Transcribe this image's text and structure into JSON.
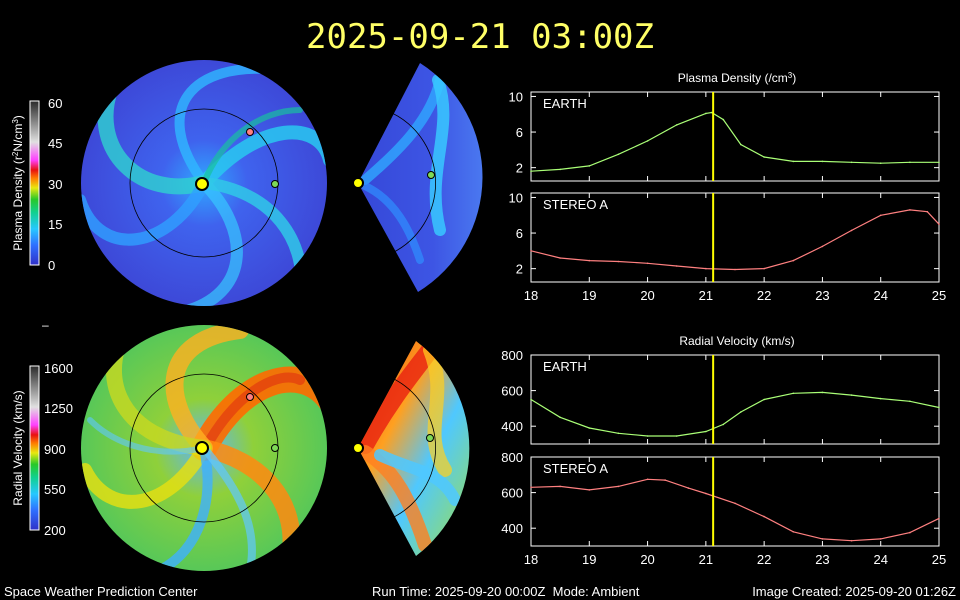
{
  "header": {
    "timestamp": "2025-09-21 03:00Z"
  },
  "colorbars": {
    "density": {
      "label": "Plasma Density (r",
      "label_sup": "2",
      "label_tail": "N/cm",
      "label_sup2": "3",
      "label_end": ")",
      "ticks": [
        "60",
        "45",
        "30",
        "15",
        "0"
      ]
    },
    "velocity": {
      "label": "Radial Velocity (km/s)",
      "ticks": [
        "1600",
        "1250",
        "900",
        "550",
        "200"
      ]
    }
  },
  "separator_mark": "–",
  "colors": {
    "earth_marker": "#7ed957",
    "stereo_marker": "#ff7f7f",
    "sun": "#ffff00",
    "now_line": "#ffff00",
    "earth_line": "#aaff77",
    "stereo_line": "#ff8080"
  },
  "chart_data": [
    {
      "type": "line",
      "title": "Plasma Density (/cm",
      "title_sup": "3",
      "title_end": ")",
      "panels": [
        {
          "name": "EARTH",
          "ylim": [
            0.5,
            10.5
          ],
          "yticks": [
            "10",
            "6",
            "2"
          ],
          "ytick_values": [
            10,
            6,
            2
          ],
          "x": [
            18,
            18.5,
            19,
            19.5,
            20,
            20.5,
            21,
            21.1,
            21.3,
            21.6,
            22,
            22.5,
            23,
            23.5,
            24,
            24.5,
            25
          ],
          "values": [
            1.6,
            1.8,
            2.2,
            3.5,
            5.0,
            6.8,
            8.1,
            8.2,
            7.4,
            4.6,
            3.2,
            2.7,
            2.7,
            2.6,
            2.5,
            2.6,
            2.6
          ]
        },
        {
          "name": "STEREO A",
          "ylim": [
            0.5,
            10.5
          ],
          "yticks": [
            "10",
            "6",
            "2"
          ],
          "ytick_values": [
            10,
            6,
            2
          ],
          "x": [
            18,
            18.5,
            19,
            19.5,
            20,
            20.5,
            21,
            21.5,
            22,
            22.5,
            23,
            23.5,
            24,
            24.5,
            24.8,
            25
          ],
          "values": [
            4.0,
            3.2,
            2.9,
            2.8,
            2.6,
            2.3,
            2.0,
            1.9,
            2.0,
            2.9,
            4.5,
            6.3,
            8.0,
            8.6,
            8.4,
            7.0
          ]
        }
      ],
      "xticks": [
        "18",
        "19",
        "20",
        "21",
        "22",
        "23",
        "24",
        "25"
      ],
      "xlim": [
        18,
        25
      ],
      "now_x": 21.125
    },
    {
      "type": "line",
      "title": "Radial Velocity (km/s)",
      "panels": [
        {
          "name": "EARTH",
          "ylim": [
            300,
            800
          ],
          "yticks": [
            "800",
            "600",
            "400"
          ],
          "ytick_values": [
            800,
            600,
            400
          ],
          "x": [
            18,
            18.5,
            19,
            19.5,
            20,
            20.5,
            21,
            21.3,
            21.6,
            22,
            22.5,
            23,
            23.5,
            24,
            24.5,
            25
          ],
          "values": [
            550,
            450,
            390,
            360,
            345,
            345,
            370,
            410,
            480,
            550,
            585,
            590,
            575,
            555,
            540,
            505
          ]
        },
        {
          "name": "STEREO A",
          "ylim": [
            300,
            800
          ],
          "yticks": [
            "800",
            "600",
            "400"
          ],
          "ytick_values": [
            800,
            600,
            400
          ],
          "x": [
            18,
            18.5,
            19,
            19.5,
            20,
            20.3,
            20.7,
            21,
            21.5,
            22,
            22.5,
            23,
            23.5,
            24,
            24.5,
            25
          ],
          "values": [
            630,
            635,
            615,
            635,
            675,
            670,
            625,
            595,
            540,
            465,
            380,
            340,
            330,
            340,
            375,
            455
          ]
        }
      ],
      "xticks": [
        "18",
        "19",
        "20",
        "21",
        "22",
        "23",
        "24",
        "25"
      ],
      "xlim": [
        18,
        25
      ],
      "now_x": 21.125
    }
  ],
  "footer": {
    "left": "Space Weather Prediction Center",
    "center": "Run Time: 2025-09-20 00:00Z  Mode: Ambient",
    "right": "Image Created: 2025-09-20 01:26Z"
  }
}
